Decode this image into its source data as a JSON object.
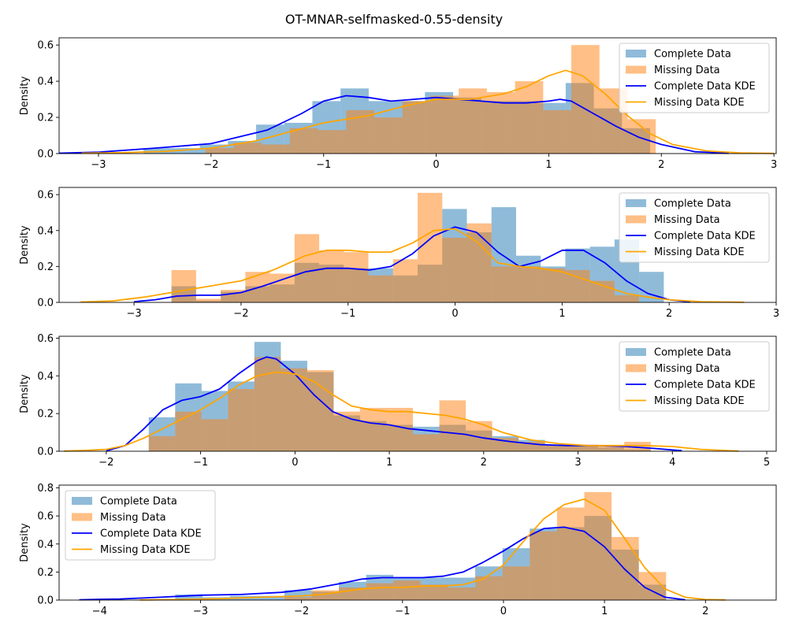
{
  "figure": {
    "title": "OT-MNAR-selfmasked-0.55-density"
  },
  "colors": {
    "complete_hist": "#1f77b4",
    "missing_hist": "#ff7f0e",
    "complete_kde": "#0000ff",
    "missing_kde": "#ffa500"
  },
  "chart_data": [
    {
      "type": "bar",
      "ylabel": "Density",
      "xlim": [
        -3.35,
        3.02
      ],
      "ylim": [
        0,
        0.64
      ],
      "xticks": [
        -3,
        -2,
        -1,
        0,
        1,
        2,
        3
      ],
      "yticks": [
        0.0,
        0.2,
        0.4,
        0.6
      ],
      "legend_position": "upper right",
      "legend": [
        "Complete Data",
        "Missing Data",
        "Complete Data KDE",
        "Missing Data KDE"
      ],
      "complete_hist": {
        "bins": [
          -2.6,
          -2.35,
          -2.1,
          -1.85,
          -1.6,
          -1.35,
          -1.1,
          -0.85,
          -0.6,
          -0.35,
          -0.1,
          0.15,
          0.4,
          0.65,
          0.9,
          1.15,
          1.4,
          1.65,
          1.9
        ],
        "values": [
          0.03,
          0.03,
          0.05,
          0.07,
          0.16,
          0.17,
          0.29,
          0.36,
          0.29,
          0.29,
          0.34,
          0.31,
          0.29,
          0.29,
          0.28,
          0.39,
          0.25,
          0.14
        ]
      },
      "missing_hist": {
        "bins": [
          -2.05,
          -1.8,
          -1.55,
          -1.3,
          -1.05,
          -0.8,
          -0.55,
          -0.3,
          -0.05,
          0.2,
          0.45,
          0.7,
          0.95,
          1.2,
          1.45,
          1.7,
          1.95
        ],
        "values": [
          0.03,
          0.06,
          0.05,
          0.14,
          0.13,
          0.24,
          0.2,
          0.29,
          0.32,
          0.36,
          0.34,
          0.4,
          0.24,
          0.6,
          0.36,
          0.19,
          0.05
        ]
      },
      "complete_kde": {
        "x": [
          -3.35,
          -3.0,
          -2.5,
          -2.0,
          -1.5,
          -1.2,
          -1.0,
          -0.8,
          -0.6,
          -0.4,
          -0.2,
          0.0,
          0.2,
          0.4,
          0.6,
          0.8,
          1.0,
          1.1,
          1.2,
          1.4,
          1.6,
          1.8,
          2.0,
          2.3,
          2.6
        ],
        "y": [
          0.002,
          0.008,
          0.03,
          0.055,
          0.13,
          0.22,
          0.29,
          0.32,
          0.31,
          0.29,
          0.3,
          0.31,
          0.3,
          0.29,
          0.28,
          0.28,
          0.29,
          0.3,
          0.29,
          0.22,
          0.15,
          0.09,
          0.05,
          0.01,
          0.002
        ]
      },
      "missing_kde": {
        "x": [
          -3.15,
          -2.8,
          -2.4,
          -2.0,
          -1.6,
          -1.3,
          -1.0,
          -0.6,
          -0.3,
          0.0,
          0.3,
          0.6,
          0.8,
          1.0,
          1.15,
          1.3,
          1.5,
          1.7,
          1.9,
          2.1,
          2.4,
          2.7,
          3.0
        ],
        "y": [
          0.002,
          0.005,
          0.012,
          0.03,
          0.07,
          0.12,
          0.17,
          0.21,
          0.26,
          0.3,
          0.3,
          0.33,
          0.37,
          0.43,
          0.46,
          0.43,
          0.33,
          0.21,
          0.11,
          0.05,
          0.015,
          0.004,
          0.001
        ]
      }
    },
    {
      "type": "bar",
      "ylabel": "Density",
      "xlim": [
        -3.7,
        3.0
      ],
      "ylim": [
        0,
        0.64
      ],
      "xticks": [
        -3,
        -2,
        -1,
        0,
        1,
        2,
        3
      ],
      "yticks": [
        0.0,
        0.2,
        0.4,
        0.6
      ],
      "legend_position": "upper right",
      "legend": [
        "Complete Data",
        "Missing Data",
        "Complete Data KDE",
        "Missing Data KDE"
      ],
      "complete_hist": {
        "bins": [
          -2.65,
          -2.42,
          -2.19,
          -1.96,
          -1.73,
          -1.5,
          -1.27,
          -1.04,
          -0.81,
          -0.58,
          -0.35,
          -0.12,
          0.11,
          0.34,
          0.57,
          0.8,
          1.03,
          1.26,
          1.49,
          1.72,
          1.95
        ],
        "values": [
          0.09,
          0.01,
          0.06,
          0.09,
          0.1,
          0.22,
          0.21,
          0.19,
          0.19,
          0.15,
          0.21,
          0.52,
          0.39,
          0.53,
          0.26,
          0.2,
          0.3,
          0.31,
          0.35,
          0.17,
          0.06
        ]
      },
      "missing_hist": {
        "bins": [
          -2.65,
          -2.42,
          -2.19,
          -1.96,
          -1.73,
          -1.5,
          -1.27,
          -1.04,
          -0.81,
          -0.58,
          -0.35,
          -0.12,
          0.11,
          0.34,
          0.57,
          0.8,
          1.03,
          1.26,
          1.49,
          1.72
        ],
        "values": [
          0.18,
          0.02,
          0.07,
          0.17,
          0.16,
          0.38,
          0.29,
          0.28,
          0.15,
          0.24,
          0.61,
          0.36,
          0.44,
          0.2,
          0.2,
          0.19,
          0.18,
          0.12,
          0.04
        ]
      },
      "complete_kde": {
        "x": [
          -3.0,
          -2.8,
          -2.6,
          -2.4,
          -2.2,
          -2.0,
          -1.8,
          -1.6,
          -1.4,
          -1.2,
          -1.0,
          -0.8,
          -0.6,
          -0.4,
          -0.2,
          0.0,
          0.2,
          0.4,
          0.6,
          0.8,
          1.0,
          1.2,
          1.4,
          1.6,
          1.8,
          2.0,
          2.2
        ],
        "y": [
          0.004,
          0.015,
          0.035,
          0.04,
          0.04,
          0.055,
          0.09,
          0.13,
          0.17,
          0.19,
          0.19,
          0.18,
          0.2,
          0.27,
          0.37,
          0.42,
          0.39,
          0.28,
          0.2,
          0.23,
          0.29,
          0.29,
          0.22,
          0.12,
          0.05,
          0.015,
          0.002
        ]
      },
      "missing_kde": {
        "x": [
          -3.5,
          -3.2,
          -2.9,
          -2.6,
          -2.3,
          -2.0,
          -1.7,
          -1.4,
          -1.2,
          -1.0,
          -0.8,
          -0.6,
          -0.4,
          -0.2,
          0.0,
          0.2,
          0.4,
          0.6,
          0.8,
          1.0,
          1.2,
          1.4,
          1.6,
          1.8,
          2.0,
          2.3,
          2.7
        ],
        "y": [
          0.002,
          0.008,
          0.03,
          0.06,
          0.09,
          0.12,
          0.18,
          0.26,
          0.29,
          0.29,
          0.28,
          0.28,
          0.33,
          0.4,
          0.41,
          0.34,
          0.22,
          0.2,
          0.19,
          0.17,
          0.13,
          0.09,
          0.05,
          0.03,
          0.015,
          0.004,
          0.001
        ]
      }
    },
    {
      "type": "bar",
      "ylabel": "Density",
      "xlim": [
        -2.5,
        5.1
      ],
      "ylim": [
        0,
        0.61
      ],
      "xticks": [
        -2,
        -1,
        0,
        1,
        2,
        3,
        4,
        5
      ],
      "yticks": [
        0.0,
        0.2,
        0.4,
        0.6
      ],
      "legend_position": "upper right",
      "legend": [
        "Complete Data",
        "Missing Data",
        "Complete Data KDE",
        "Missing Data KDE"
      ],
      "complete_hist": {
        "bins": [
          -1.55,
          -1.27,
          -0.99,
          -0.71,
          -0.43,
          -0.15,
          0.13,
          0.41,
          0.69,
          0.97,
          1.25,
          1.53,
          1.81,
          2.09,
          2.37,
          2.65,
          2.93,
          3.21,
          3.49,
          3.77
        ],
        "values": [
          0.18,
          0.36,
          0.32,
          0.37,
          0.58,
          0.48,
          0.42,
          0.19,
          0.16,
          0.14,
          0.13,
          0.14,
          0.11,
          0.08,
          0.06,
          0.03,
          0.03,
          0.02,
          0.01
        ]
      },
      "missing_hist": {
        "bins": [
          -1.55,
          -1.27,
          -0.99,
          -0.71,
          -0.43,
          -0.15,
          0.13,
          0.41,
          0.69,
          0.97,
          1.25,
          1.53,
          1.81,
          2.09,
          2.37,
          2.65,
          2.93,
          3.21,
          3.49,
          3.77
        ],
        "values": [
          0.08,
          0.21,
          0.17,
          0.33,
          0.5,
          0.44,
          0.43,
          0.21,
          0.23,
          0.23,
          0.09,
          0.27,
          0.16,
          0.07,
          0.05,
          0.03,
          0.03,
          0.03,
          0.05
        ]
      },
      "complete_kde": {
        "x": [
          -2.0,
          -1.8,
          -1.6,
          -1.4,
          -1.2,
          -1.0,
          -0.8,
          -0.6,
          -0.4,
          -0.3,
          -0.2,
          0.0,
          0.2,
          0.4,
          0.6,
          0.8,
          1.0,
          1.2,
          1.4,
          1.6,
          1.8,
          2.0,
          2.3,
          2.6,
          2.9,
          3.2,
          3.5,
          3.8,
          4.1
        ],
        "y": [
          0.002,
          0.03,
          0.12,
          0.22,
          0.27,
          0.29,
          0.33,
          0.41,
          0.48,
          0.5,
          0.49,
          0.41,
          0.3,
          0.21,
          0.17,
          0.15,
          0.14,
          0.12,
          0.11,
          0.1,
          0.09,
          0.07,
          0.05,
          0.035,
          0.03,
          0.03,
          0.025,
          0.015,
          0.003
        ]
      },
      "missing_kde": {
        "x": [
          -2.45,
          -2.2,
          -2.0,
          -1.8,
          -1.6,
          -1.4,
          -1.2,
          -1.0,
          -0.8,
          -0.6,
          -0.4,
          -0.2,
          0.0,
          0.2,
          0.4,
          0.6,
          0.8,
          1.0,
          1.2,
          1.4,
          1.6,
          1.8,
          2.0,
          2.2,
          2.5,
          2.8,
          3.1,
          3.4,
          3.7,
          4.0,
          4.3,
          4.7
        ],
        "y": [
          0.001,
          0.005,
          0.01,
          0.03,
          0.07,
          0.12,
          0.17,
          0.22,
          0.28,
          0.35,
          0.4,
          0.42,
          0.41,
          0.37,
          0.3,
          0.24,
          0.22,
          0.21,
          0.21,
          0.2,
          0.19,
          0.17,
          0.14,
          0.1,
          0.06,
          0.04,
          0.03,
          0.03,
          0.03,
          0.025,
          0.01,
          0.001
        ]
      }
    },
    {
      "type": "bar",
      "ylabel": "Density",
      "xlim": [
        -4.4,
        2.7
      ],
      "ylim": [
        0,
        0.82
      ],
      "xticks": [
        -4,
        -3,
        -2,
        -1,
        0,
        1,
        2
      ],
      "yticks": [
        0.0,
        0.2,
        0.4,
        0.6,
        0.8
      ],
      "legend_position": "upper left",
      "legend": [
        "Complete Data",
        "Missing Data",
        "Complete Data KDE",
        "Missing Data KDE"
      ],
      "complete_hist": {
        "bins": [
          -3.25,
          -2.98,
          -2.71,
          -2.44,
          -2.17,
          -1.9,
          -1.63,
          -1.36,
          -1.09,
          -0.82,
          -0.55,
          -0.28,
          -0.01,
          0.26,
          0.53,
          0.8,
          1.07,
          1.34,
          1.61
        ],
        "values": [
          0.04,
          0.02,
          0.03,
          0.03,
          0.07,
          0.06,
          0.13,
          0.18,
          0.16,
          0.16,
          0.16,
          0.24,
          0.37,
          0.51,
          0.52,
          0.6,
          0.36,
          0.11
        ]
      },
      "missing_hist": {
        "bins": [
          -2.17,
          -1.9,
          -1.63,
          -1.36,
          -1.09,
          -0.82,
          -0.55,
          -0.28,
          -0.01,
          0.26,
          0.53,
          0.8,
          1.07,
          1.34,
          1.61
        ],
        "values": [
          0.02,
          0.07,
          0.09,
          0.12,
          0.14,
          0.11,
          0.09,
          0.17,
          0.24,
          0.49,
          0.66,
          0.77,
          0.45,
          0.2,
          0.06
        ]
      },
      "complete_kde": {
        "x": [
          -4.2,
          -3.8,
          -3.4,
          -3.0,
          -2.6,
          -2.2,
          -1.9,
          -1.6,
          -1.4,
          -1.2,
          -1.0,
          -0.8,
          -0.6,
          -0.4,
          -0.2,
          0.0,
          0.2,
          0.4,
          0.6,
          0.8,
          1.0,
          1.2,
          1.4,
          1.6,
          1.8
        ],
        "y": [
          0.002,
          0.008,
          0.02,
          0.035,
          0.04,
          0.055,
          0.08,
          0.12,
          0.15,
          0.16,
          0.16,
          0.16,
          0.17,
          0.2,
          0.27,
          0.35,
          0.44,
          0.51,
          0.52,
          0.49,
          0.38,
          0.22,
          0.09,
          0.02,
          0.002
        ]
      },
      "missing_kde": {
        "x": [
          -3.6,
          -3.2,
          -2.8,
          -2.4,
          -2.0,
          -1.8,
          -1.6,
          -1.4,
          -1.2,
          -1.0,
          -0.8,
          -0.6,
          -0.4,
          -0.2,
          0.0,
          0.2,
          0.4,
          0.6,
          0.8,
          1.0,
          1.2,
          1.4,
          1.6,
          1.8,
          2.0,
          2.2
        ],
        "y": [
          0.001,
          0.004,
          0.01,
          0.02,
          0.03,
          0.04,
          0.06,
          0.08,
          0.09,
          0.09,
          0.1,
          0.1,
          0.11,
          0.15,
          0.25,
          0.42,
          0.58,
          0.68,
          0.72,
          0.64,
          0.44,
          0.23,
          0.08,
          0.02,
          0.004,
          0.001
        ]
      }
    }
  ]
}
